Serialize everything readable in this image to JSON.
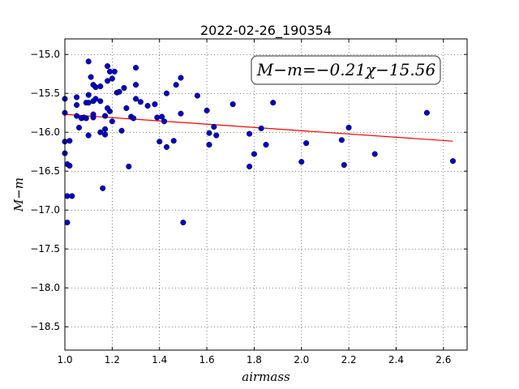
{
  "chart_data": {
    "type": "scatter",
    "title": "2022-02-26_190354",
    "xlabel": "airmass",
    "ylabel": "M−m",
    "xlim": [
      1.0,
      2.7
    ],
    "ylim": [
      -18.8,
      -14.8
    ],
    "x_ticks": [
      1.0,
      1.2,
      1.4,
      1.6,
      1.8,
      2.0,
      2.2,
      2.4,
      2.6
    ],
    "x_tick_labels": [
      "1.0",
      "1.2",
      "1.4",
      "1.6",
      "1.8",
      "2.0",
      "2.2",
      "2.4",
      "2.6"
    ],
    "y_ticks": [
      -15.0,
      -15.5,
      -16.0,
      -16.5,
      -17.0,
      -17.5,
      -18.0,
      -18.5
    ],
    "y_tick_labels": [
      "−15.0",
      "−15.5",
      "−16.0",
      "−16.5",
      "−17.0",
      "−17.5",
      "−18.0",
      "−18.5"
    ],
    "grid": true,
    "annotation": "M−m=−0.21χ−15.56",
    "fit": {
      "slope": -0.21,
      "intercept": -15.56,
      "x_range": [
        1.0,
        2.64
      ],
      "color": "#ff0000"
    },
    "marker_color": "#0000cc",
    "points": [
      {
        "x": 1.0,
        "y": -15.57
      },
      {
        "x": 1.0,
        "y": -15.75
      },
      {
        "x": 1.0,
        "y": -16.12
      },
      {
        "x": 1.0,
        "y": -16.27
      },
      {
        "x": 1.01,
        "y": -16.41
      },
      {
        "x": 1.01,
        "y": -17.16
      },
      {
        "x": 1.01,
        "y": -16.82
      },
      {
        "x": 1.02,
        "y": -16.11
      },
      {
        "x": 1.02,
        "y": -16.43
      },
      {
        "x": 1.03,
        "y": -16.82
      },
      {
        "x": 1.05,
        "y": -15.55
      },
      {
        "x": 1.05,
        "y": -15.65
      },
      {
        "x": 1.05,
        "y": -15.79
      },
      {
        "x": 1.06,
        "y": -15.94
      },
      {
        "x": 1.07,
        "y": -15.82
      },
      {
        "x": 1.08,
        "y": -15.81
      },
      {
        "x": 1.09,
        "y": -15.62
      },
      {
        "x": 1.09,
        "y": -15.82
      },
      {
        "x": 1.1,
        "y": -15.52
      },
      {
        "x": 1.1,
        "y": -16.04
      },
      {
        "x": 1.1,
        "y": -15.62
      },
      {
        "x": 1.1,
        "y": -15.09
      },
      {
        "x": 1.11,
        "y": -15.29
      },
      {
        "x": 1.12,
        "y": -15.39
      },
      {
        "x": 1.12,
        "y": -15.6
      },
      {
        "x": 1.12,
        "y": -15.77
      },
      {
        "x": 1.12,
        "y": -15.81
      },
      {
        "x": 1.13,
        "y": -15.42
      },
      {
        "x": 1.13,
        "y": -15.57
      },
      {
        "x": 1.15,
        "y": -15.6
      },
      {
        "x": 1.15,
        "y": -15.41
      },
      {
        "x": 1.15,
        "y": -16.0
      },
      {
        "x": 1.16,
        "y": -16.72
      },
      {
        "x": 1.17,
        "y": -15.96
      },
      {
        "x": 1.17,
        "y": -15.79
      },
      {
        "x": 1.17,
        "y": -16.03
      },
      {
        "x": 1.18,
        "y": -15.34
      },
      {
        "x": 1.18,
        "y": -15.69
      },
      {
        "x": 1.18,
        "y": -15.15
      },
      {
        "x": 1.19,
        "y": -15.22
      },
      {
        "x": 1.19,
        "y": -15.73
      },
      {
        "x": 1.2,
        "y": -15.31
      },
      {
        "x": 1.2,
        "y": -15.86
      },
      {
        "x": 1.21,
        "y": -15.22
      },
      {
        "x": 1.22,
        "y": -15.49
      },
      {
        "x": 1.23,
        "y": -15.48
      },
      {
        "x": 1.24,
        "y": -15.98
      },
      {
        "x": 1.25,
        "y": -15.43
      },
      {
        "x": 1.26,
        "y": -15.69
      },
      {
        "x": 1.27,
        "y": -16.44
      },
      {
        "x": 1.28,
        "y": -15.8
      },
      {
        "x": 1.29,
        "y": -15.82
      },
      {
        "x": 1.3,
        "y": -15.17
      },
      {
        "x": 1.3,
        "y": -15.39
      },
      {
        "x": 1.3,
        "y": -15.57
      },
      {
        "x": 1.32,
        "y": -15.61
      },
      {
        "x": 1.35,
        "y": -15.66
      },
      {
        "x": 1.38,
        "y": -15.64
      },
      {
        "x": 1.39,
        "y": -15.81
      },
      {
        "x": 1.4,
        "y": -16.12
      },
      {
        "x": 1.41,
        "y": -15.8
      },
      {
        "x": 1.42,
        "y": -15.86
      },
      {
        "x": 1.43,
        "y": -15.5
      },
      {
        "x": 1.43,
        "y": -16.19
      },
      {
        "x": 1.46,
        "y": -16.11
      },
      {
        "x": 1.47,
        "y": -15.39
      },
      {
        "x": 1.49,
        "y": -15.76
      },
      {
        "x": 1.49,
        "y": -15.3
      },
      {
        "x": 1.5,
        "y": -17.16
      },
      {
        "x": 1.56,
        "y": -15.53
      },
      {
        "x": 1.6,
        "y": -15.72
      },
      {
        "x": 1.61,
        "y": -16.01
      },
      {
        "x": 1.61,
        "y": -16.16
      },
      {
        "x": 1.63,
        "y": -15.93
      },
      {
        "x": 1.64,
        "y": -16.04
      },
      {
        "x": 1.71,
        "y": -15.64
      },
      {
        "x": 1.78,
        "y": -16.02
      },
      {
        "x": 1.78,
        "y": -16.44
      },
      {
        "x": 1.8,
        "y": -16.28
      },
      {
        "x": 1.83,
        "y": -15.95
      },
      {
        "x": 1.85,
        "y": -16.16
      },
      {
        "x": 1.88,
        "y": -15.62
      },
      {
        "x": 2.0,
        "y": -16.38
      },
      {
        "x": 2.02,
        "y": -16.14
      },
      {
        "x": 2.17,
        "y": -16.1
      },
      {
        "x": 2.18,
        "y": -16.42
      },
      {
        "x": 2.2,
        "y": -15.94
      },
      {
        "x": 2.31,
        "y": -16.28
      },
      {
        "x": 2.53,
        "y": -15.75
      },
      {
        "x": 2.64,
        "y": -16.37
      }
    ]
  }
}
